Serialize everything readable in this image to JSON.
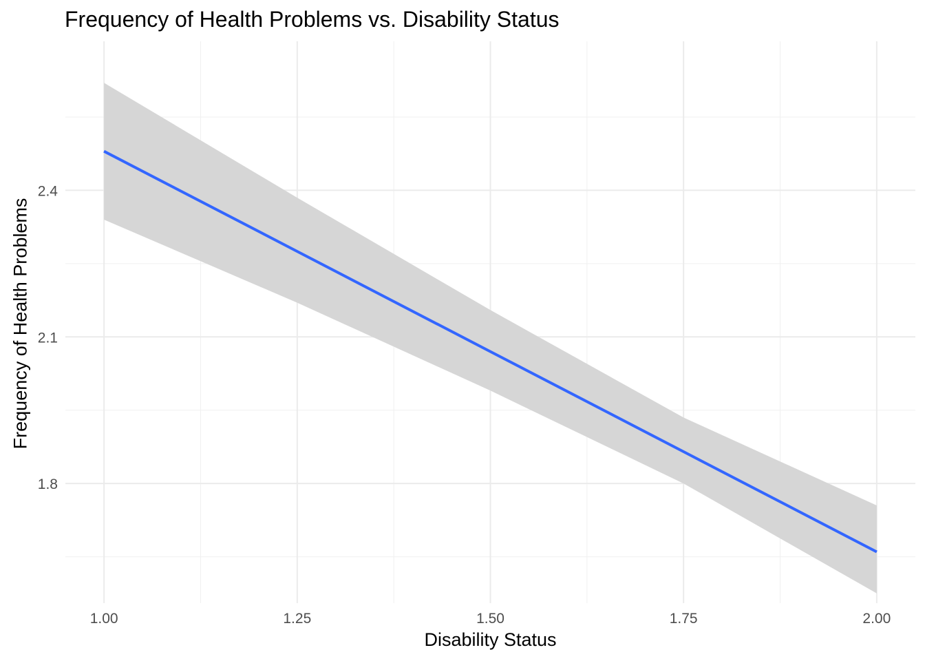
{
  "chart_data": {
    "type": "line",
    "title": "Frequency of Health Problems vs. Disability Status",
    "xlabel": "Disability Status",
    "ylabel": "Frequency of Health Problems",
    "xlim": [
      0.95,
      2.05
    ],
    "ylim": [
      1.555,
      2.705
    ],
    "x_ticks": [
      1.0,
      1.25,
      1.5,
      1.75,
      2.0
    ],
    "x_tick_labels": [
      "1.00",
      "1.25",
      "1.50",
      "1.75",
      "2.00"
    ],
    "x_minor_ticks": [
      1.125,
      1.375,
      1.625,
      1.875
    ],
    "y_ticks": [
      1.8,
      2.1,
      2.4
    ],
    "y_tick_labels": [
      "1.8",
      "2.1",
      "2.4"
    ],
    "y_minor_ticks": [
      1.65,
      1.95,
      2.25,
      2.55
    ],
    "grid": true,
    "series": [
      {
        "x": [
          1.0,
          1.25,
          1.5,
          1.75,
          2.0
        ],
        "values": [
          2.48,
          2.275,
          2.07,
          1.865,
          1.66
        ],
        "ci_lower": [
          2.34,
          2.17,
          1.99,
          1.8,
          1.575
        ],
        "ci_upper": [
          2.62,
          2.385,
          2.155,
          1.935,
          1.755
        ],
        "color": "#3366ff",
        "band_color": "#d6d6d6"
      }
    ]
  }
}
